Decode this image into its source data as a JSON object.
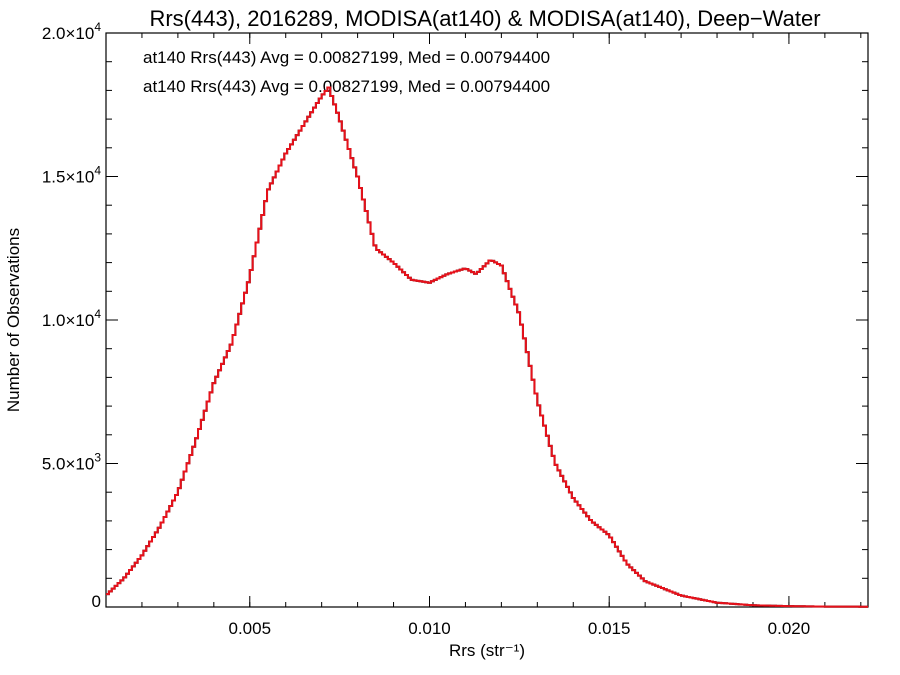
{
  "chart_data": {
    "type": "line",
    "title": "Rrs(443), 2016289, MODISA(at140) & MODISA(at140), Deep−Water",
    "xlabel": "Rrs (str⁻¹)",
    "ylabel": "Number of Observations",
    "xlim": [
      0.001,
      0.0222
    ],
    "ylim": [
      0,
      20000
    ],
    "grid": false,
    "step": true,
    "x_ticks": [
      0.005,
      0.01,
      0.015,
      0.02
    ],
    "x_tick_labels": [
      "0.005",
      "0.010",
      "0.015",
      "0.020"
    ],
    "y_ticks": [
      0,
      5000,
      10000,
      15000,
      20000
    ],
    "y_tick_labels": [
      {
        "mant": "0",
        "exp": ""
      },
      {
        "mant": "5.0×10",
        "exp": "3"
      },
      {
        "mant": "1.0×10",
        "exp": "4"
      },
      {
        "mant": "1.5×10",
        "exp": "4"
      },
      {
        "mant": "2.0×10",
        "exp": "4"
      }
    ],
    "annotations": [
      {
        "text": "at140 Rrs(443) Avg = 0.00827199, Med = 0.00794400",
        "color": "#000000"
      },
      {
        "text": "at140 Rrs(443) Avg = 0.00827199, Med = 0.00794400",
        "color": "#e8101a"
      }
    ],
    "series": [
      {
        "color": "#000000",
        "x": [
          0.001,
          0.0015,
          0.002,
          0.0025,
          0.003,
          0.0035,
          0.004,
          0.0045,
          0.005,
          0.0055,
          0.006,
          0.0065,
          0.007,
          0.0072,
          0.0075,
          0.008,
          0.0085,
          0.009,
          0.0095,
          0.01,
          0.0105,
          0.011,
          0.0113,
          0.0117,
          0.012,
          0.0125,
          0.013,
          0.0135,
          0.014,
          0.0145,
          0.015,
          0.0155,
          0.016,
          0.017,
          0.018,
          0.019,
          0.02,
          0.021,
          0.0222
        ],
        "y": [
          400,
          1000,
          1800,
          2800,
          4000,
          5800,
          7800,
          9200,
          11500,
          14500,
          15800,
          16800,
          17800,
          18100,
          17000,
          15000,
          12500,
          12000,
          11400,
          11300,
          11600,
          11800,
          11600,
          12100,
          11900,
          10200,
          7200,
          5000,
          3800,
          3000,
          2500,
          1500,
          900,
          400,
          150,
          60,
          30,
          15,
          10
        ]
      },
      {
        "color": "#e8101a",
        "x": [
          0.001,
          0.0015,
          0.002,
          0.0025,
          0.003,
          0.0035,
          0.004,
          0.0045,
          0.005,
          0.0055,
          0.006,
          0.0065,
          0.007,
          0.0072,
          0.0075,
          0.008,
          0.0085,
          0.009,
          0.0095,
          0.01,
          0.0105,
          0.011,
          0.0113,
          0.0117,
          0.012,
          0.0125,
          0.013,
          0.0135,
          0.014,
          0.0145,
          0.015,
          0.0155,
          0.016,
          0.017,
          0.018,
          0.019,
          0.02,
          0.021,
          0.0222
        ],
        "y": [
          400,
          1000,
          1800,
          2800,
          4000,
          5800,
          7800,
          9200,
          11500,
          14500,
          15800,
          16800,
          17800,
          18100,
          17000,
          15000,
          12500,
          12000,
          11400,
          11300,
          11600,
          11800,
          11600,
          12100,
          11900,
          10200,
          7200,
          5000,
          3800,
          3000,
          2500,
          1500,
          900,
          400,
          150,
          60,
          30,
          15,
          10
        ]
      }
    ]
  }
}
